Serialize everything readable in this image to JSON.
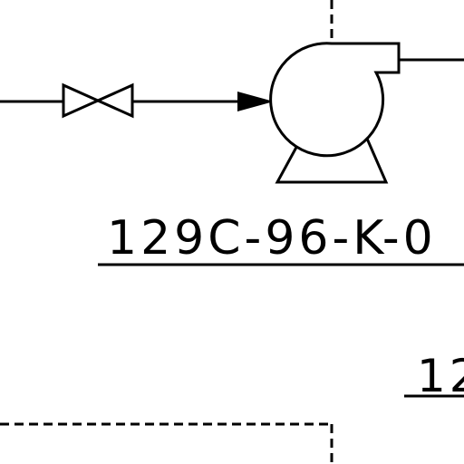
{
  "diagram": {
    "equipment_tag": "129C-96-K-0",
    "secondary_tag": "12"
  }
}
